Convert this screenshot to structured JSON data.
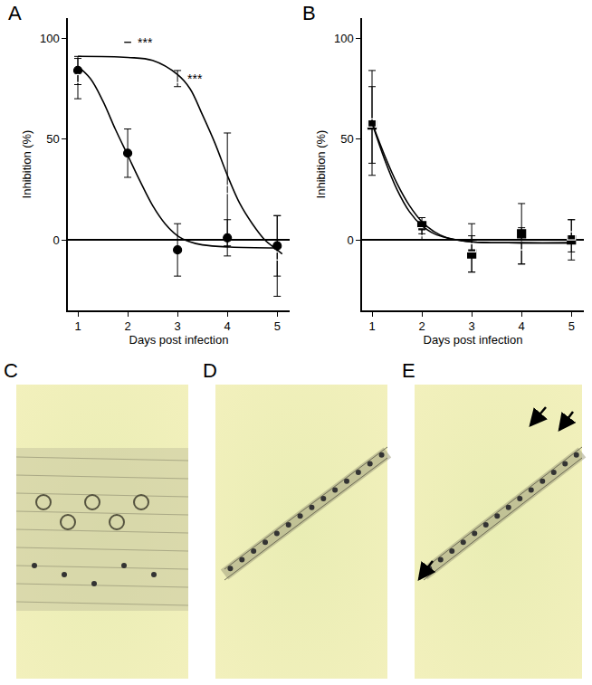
{
  "chart_data": [
    {
      "type": "scatter",
      "title": "A",
      "xlabel": "Days post infection",
      "ylabel": "Inhibition (%)",
      "xlim": [
        0.8,
        5.25
      ],
      "xticks": [
        1,
        2,
        3,
        4,
        5
      ],
      "ylim": [
        -35,
        110
      ],
      "yticks": [
        0,
        50,
        100
      ],
      "grid": false,
      "series": [
        {
          "type": "scatter",
          "marker": "circle",
          "color": "#000000",
          "x": [
            1,
            2,
            3,
            4,
            5
          ],
          "values": [
            84,
            43,
            -5,
            1,
            -3
          ],
          "errors": [
            7,
            12,
            13,
            9,
            15
          ]
        },
        {
          "type": "scatter",
          "marker": "circle-open",
          "color": "#000000",
          "x": [
            1,
            2,
            3,
            4,
            5
          ],
          "values": [
            80,
            98,
            80,
            25,
            -8
          ],
          "errors": [
            10,
            0,
            4,
            28,
            20
          ]
        },
        {
          "type": "line",
          "line_style": "solid",
          "color": "#000000",
          "x": [
            1,
            1.25,
            1.5,
            1.75,
            2,
            2.25,
            2.5,
            2.75,
            3,
            3.25,
            3.5,
            4,
            5
          ],
          "values": [
            86,
            80,
            69,
            55,
            42,
            29,
            17,
            8,
            2,
            -1,
            -2.5,
            -3.5,
            -4
          ]
        },
        {
          "type": "line",
          "line_style": "solid",
          "color": "#000000",
          "x": [
            1,
            2,
            2.5,
            3,
            3.25,
            3.5,
            3.75,
            4,
            4.25,
            4.5,
            4.75,
            5,
            5.1
          ],
          "values": [
            91,
            90.5,
            89,
            82,
            75,
            62,
            48,
            32,
            18,
            8,
            0,
            -5,
            -7
          ]
        }
      ],
      "annotations": [
        {
          "text": "***",
          "x": 2,
          "y": 98
        },
        {
          "text": "***",
          "x": 3,
          "y": 80
        }
      ]
    },
    {
      "type": "scatter",
      "title": "B",
      "xlabel": "Days post infection",
      "ylabel": "Inhibition (%)",
      "xlim": [
        0.8,
        5.25
      ],
      "xticks": [
        1,
        2,
        3,
        4,
        5
      ],
      "ylim": [
        -35,
        110
      ],
      "yticks": [
        0,
        50,
        100
      ],
      "grid": false,
      "series": [
        {
          "type": "scatter",
          "marker": "square",
          "color": "#000000",
          "x": [
            1,
            2,
            3,
            4,
            5
          ],
          "values": [
            57,
            7,
            -7,
            3,
            0
          ],
          "errors": [
            19,
            4,
            9,
            15,
            10
          ]
        },
        {
          "type": "scatter",
          "marker": "square-open",
          "color": "#000000",
          "x": [
            1,
            2,
            3,
            4,
            5
          ],
          "values": [
            58,
            4,
            -4,
            -3,
            2
          ],
          "errors": [
            26,
            4,
            12,
            9,
            8
          ]
        },
        {
          "type": "line",
          "line_style": "solid",
          "color": "#000000",
          "x": [
            1,
            1.25,
            1.5,
            1.75,
            2,
            2.25,
            2.5,
            3,
            4,
            5
          ],
          "values": [
            58,
            40,
            25,
            14,
            7,
            3,
            1,
            -1,
            -1.5,
            -1.5
          ]
        },
        {
          "type": "line",
          "line_style": "solid",
          "color": "#000000",
          "x": [
            1,
            1.25,
            1.5,
            1.75,
            2,
            2.25,
            2.5,
            3,
            4,
            5
          ],
          "values": [
            58,
            42,
            28,
            17,
            9,
            4,
            1,
            -1,
            -1.5,
            -1.5
          ]
        }
      ],
      "annotations": []
    }
  ],
  "panels": [
    {
      "label": "C"
    },
    {
      "label": "D"
    },
    {
      "label": "E"
    }
  ]
}
